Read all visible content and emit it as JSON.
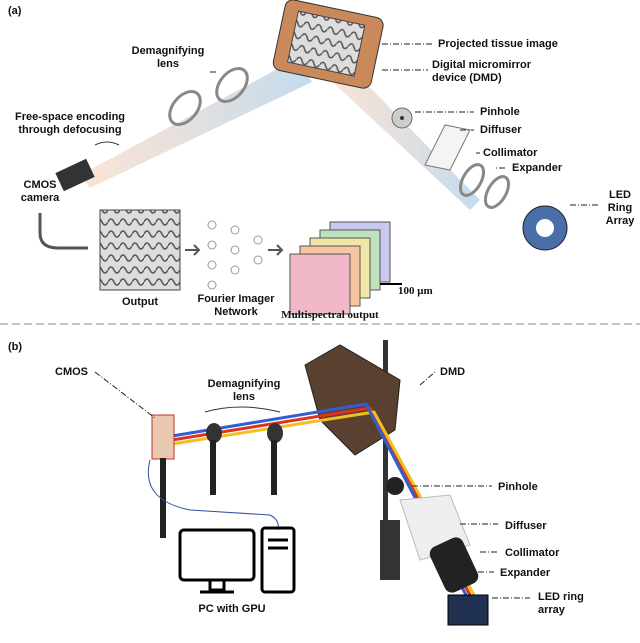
{
  "panel_a": {
    "label": "(a)",
    "projected": "Projected tissue image",
    "dmd": [
      "Digital micromirror",
      "device (DMD)"
    ],
    "demag": [
      "Demagnifying",
      "lens"
    ],
    "pinhole": "Pinhole",
    "diffuser": "Diffuser",
    "collimator": "Collimator",
    "expander": "Expander",
    "led": [
      "LED",
      "Ring",
      "Array"
    ],
    "encoding": [
      "Free-space encoding",
      "through defocusing"
    ],
    "cmos": [
      "CMOS",
      "camera"
    ],
    "output": "Output",
    "network": [
      "Fourier Imager",
      "Network"
    ],
    "multispectral": "Multispectral output",
    "scale": "100 μm"
  },
  "panel_b": {
    "label": "(b)",
    "cmos": "CMOS",
    "demag": [
      "Demagnifying",
      "lens"
    ],
    "dmd": "DMD",
    "pinhole": "Pinhole",
    "diffuser": "Diffuser",
    "collimator": "Collimator",
    "expander": "Expander",
    "led": [
      "LED ring",
      "array"
    ],
    "pc": "PC with GPU"
  }
}
